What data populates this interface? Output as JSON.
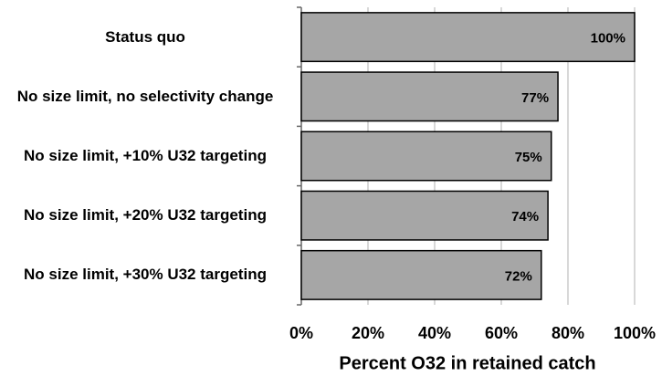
{
  "chart_data": {
    "type": "barh",
    "categories": [
      "Status quo",
      "No size limit, no selectivity change",
      "No size limit, +10% U32 targeting",
      "No size limit, +20% U32 targeting",
      "No size limit, +30% U32 targeting"
    ],
    "values": [
      100,
      77,
      75,
      74,
      72
    ],
    "value_labels": [
      "100%",
      "77%",
      "75%",
      "74%",
      "72%"
    ],
    "color": "#a6a6a6",
    "xlabel": "Percent O32 in retained catch",
    "xlim": [
      0,
      100
    ],
    "xticks": [
      {
        "value": 0,
        "label": "0%"
      },
      {
        "value": 20,
        "label": "20%"
      },
      {
        "value": 40,
        "label": "40%"
      },
      {
        "value": 60,
        "label": "60%"
      },
      {
        "value": 80,
        "label": "80%"
      },
      {
        "value": 100,
        "label": "100%"
      }
    ],
    "grid": true
  }
}
